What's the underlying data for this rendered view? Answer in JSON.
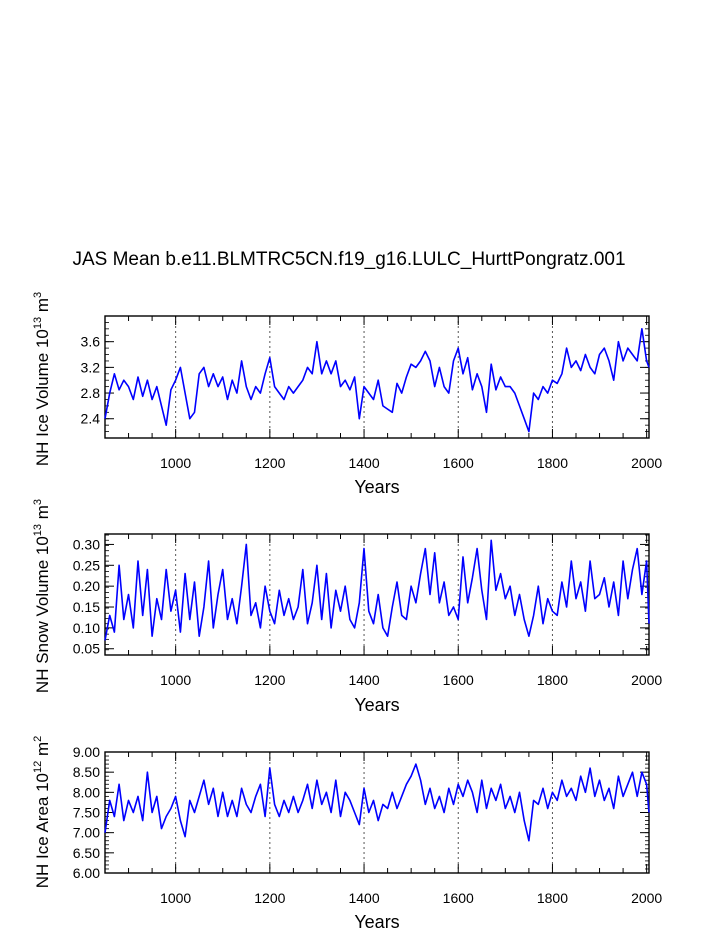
{
  "chart_data": {
    "title": "JAS Mean b.e11.BLMTRC5CN.f19_g16.LULC_HurttPongratz.001",
    "type": "line",
    "line_color": "#0000ff",
    "grid": "vertical dashed at 1000, 1200, 1400, 1600, 1800",
    "panels": [
      {
        "type": "line",
        "ylabel": {
          "main": "NH Ice Volume 10",
          "sup_exp": "13",
          "unit": "m",
          "sup_unit": "3"
        },
        "xlabel": "Years",
        "xlim": [
          850,
          2005
        ],
        "ylim": [
          2.1,
          4.0
        ],
        "xticks": [
          1000,
          1200,
          1400,
          1600,
          1800,
          2000
        ],
        "yticks": [
          2.4,
          2.8,
          3.2,
          3.6
        ],
        "ytick_labels": [
          "2.4",
          "2.8",
          "3.2",
          "3.6"
        ],
        "series": [
          {
            "name": "NH Ice Volume",
            "x": [
              850,
              860,
              870,
              880,
              890,
              900,
              910,
              920,
              930,
              940,
              950,
              960,
              970,
              980,
              990,
              1000,
              1010,
              1020,
              1030,
              1040,
              1050,
              1060,
              1070,
              1080,
              1090,
              1100,
              1110,
              1120,
              1130,
              1140,
              1150,
              1160,
              1170,
              1180,
              1190,
              1200,
              1210,
              1220,
              1230,
              1240,
              1250,
              1260,
              1270,
              1280,
              1290,
              1300,
              1310,
              1320,
              1330,
              1340,
              1350,
              1360,
              1370,
              1380,
              1390,
              1400,
              1410,
              1420,
              1430,
              1440,
              1450,
              1460,
              1470,
              1480,
              1490,
              1500,
              1510,
              1520,
              1530,
              1540,
              1550,
              1560,
              1570,
              1580,
              1590,
              1600,
              1610,
              1620,
              1630,
              1640,
              1650,
              1660,
              1670,
              1680,
              1690,
              1700,
              1710,
              1720,
              1730,
              1740,
              1750,
              1760,
              1770,
              1780,
              1790,
              1800,
              1810,
              1820,
              1830,
              1840,
              1850,
              1860,
              1870,
              1880,
              1890,
              1900,
              1910,
              1920,
              1930,
              1940,
              1950,
              1960,
              1970,
              1980,
              1990,
              2000,
              2005
            ],
            "values": [
              2.4,
              2.8,
              3.1,
              2.85,
              3.0,
              2.9,
              2.7,
              3.05,
              2.75,
              3.0,
              2.7,
              2.9,
              2.6,
              2.3,
              2.85,
              3.0,
              3.2,
              2.8,
              2.4,
              2.5,
              3.1,
              3.2,
              2.9,
              3.1,
              2.9,
              3.05,
              2.7,
              3.0,
              2.8,
              3.3,
              2.9,
              2.7,
              2.9,
              2.8,
              3.1,
              3.35,
              2.9,
              2.8,
              2.7,
              2.9,
              2.8,
              2.9,
              3.0,
              3.2,
              3.1,
              3.6,
              3.1,
              3.3,
              3.1,
              3.3,
              2.9,
              3.0,
              2.85,
              3.05,
              2.4,
              2.9,
              2.8,
              2.7,
              3.0,
              2.6,
              2.55,
              2.5,
              2.95,
              2.8,
              3.05,
              3.25,
              3.2,
              3.3,
              3.45,
              3.3,
              2.9,
              3.2,
              2.9,
              2.8,
              3.3,
              3.5,
              3.1,
              3.35,
              2.85,
              3.1,
              2.9,
              2.5,
              3.25,
              2.85,
              3.05,
              2.9,
              2.9,
              2.8,
              2.6,
              2.4,
              2.2,
              2.8,
              2.7,
              2.9,
              2.8,
              3.0,
              2.95,
              3.1,
              3.5,
              3.2,
              3.3,
              3.15,
              3.4,
              3.2,
              3.1,
              3.4,
              3.5,
              3.3,
              3.0,
              3.6,
              3.3,
              3.5,
              3.4,
              3.3,
              3.8,
              3.3,
              3.2
            ]
          }
        ]
      },
      {
        "type": "line",
        "ylabel": {
          "main": "NH Snow Volume 10",
          "sup_exp": "13",
          "unit": "m",
          "sup_unit": "3"
        },
        "xlabel": "Years",
        "xlim": [
          850,
          2005
        ],
        "ylim": [
          0.035,
          0.325
        ],
        "xticks": [
          1000,
          1200,
          1400,
          1600,
          1800,
          2000
        ],
        "yticks": [
          0.05,
          0.1,
          0.15,
          0.2,
          0.25,
          0.3
        ],
        "ytick_labels": [
          "0.05",
          "0.10",
          "0.15",
          "0.20",
          "0.25",
          "0.30"
        ],
        "series": [
          {
            "name": "NH Snow Volume",
            "x": [
              850,
              860,
              870,
              880,
              890,
              900,
              910,
              920,
              930,
              940,
              950,
              960,
              970,
              980,
              990,
              1000,
              1010,
              1020,
              1030,
              1040,
              1050,
              1060,
              1070,
              1080,
              1090,
              1100,
              1110,
              1120,
              1130,
              1140,
              1150,
              1160,
              1170,
              1180,
              1190,
              1200,
              1210,
              1220,
              1230,
              1240,
              1250,
              1260,
              1270,
              1280,
              1290,
              1300,
              1310,
              1320,
              1330,
              1340,
              1350,
              1360,
              1370,
              1380,
              1390,
              1400,
              1410,
              1420,
              1430,
              1440,
              1450,
              1460,
              1470,
              1480,
              1490,
              1500,
              1510,
              1520,
              1530,
              1540,
              1550,
              1560,
              1570,
              1580,
              1590,
              1600,
              1610,
              1620,
              1630,
              1640,
              1650,
              1660,
              1670,
              1680,
              1690,
              1700,
              1710,
              1720,
              1730,
              1740,
              1750,
              1760,
              1770,
              1780,
              1790,
              1800,
              1810,
              1820,
              1830,
              1840,
              1850,
              1860,
              1870,
              1880,
              1890,
              1900,
              1910,
              1920,
              1930,
              1940,
              1950,
              1960,
              1970,
              1980,
              1990,
              2000,
              2005
            ],
            "values": [
              0.07,
              0.13,
              0.09,
              0.25,
              0.12,
              0.18,
              0.1,
              0.26,
              0.13,
              0.24,
              0.08,
              0.17,
              0.12,
              0.24,
              0.14,
              0.19,
              0.09,
              0.23,
              0.12,
              0.21,
              0.08,
              0.15,
              0.26,
              0.1,
              0.18,
              0.24,
              0.12,
              0.17,
              0.11,
              0.2,
              0.3,
              0.13,
              0.16,
              0.1,
              0.2,
              0.14,
              0.11,
              0.19,
              0.13,
              0.17,
              0.12,
              0.15,
              0.24,
              0.11,
              0.16,
              0.25,
              0.12,
              0.23,
              0.1,
              0.19,
              0.14,
              0.2,
              0.12,
              0.1,
              0.16,
              0.29,
              0.14,
              0.11,
              0.18,
              0.1,
              0.08,
              0.15,
              0.21,
              0.13,
              0.12,
              0.2,
              0.16,
              0.23,
              0.29,
              0.18,
              0.28,
              0.16,
              0.21,
              0.13,
              0.15,
              0.12,
              0.27,
              0.16,
              0.22,
              0.29,
              0.19,
              0.12,
              0.31,
              0.19,
              0.23,
              0.17,
              0.2,
              0.13,
              0.18,
              0.12,
              0.08,
              0.13,
              0.2,
              0.11,
              0.17,
              0.14,
              0.13,
              0.21,
              0.15,
              0.26,
              0.17,
              0.21,
              0.14,
              0.26,
              0.17,
              0.18,
              0.22,
              0.15,
              0.21,
              0.13,
              0.26,
              0.17,
              0.24,
              0.29,
              0.18,
              0.26,
              0.11
            ]
          }
        ]
      },
      {
        "type": "line",
        "ylabel": {
          "main": "NH Ice Area 10",
          "sup_exp": "12",
          "unit": "m",
          "sup_unit": "2"
        },
        "xlabel": "Years",
        "xlim": [
          850,
          2005
        ],
        "ylim": [
          6.0,
          9.0
        ],
        "xticks": [
          1000,
          1200,
          1400,
          1600,
          1800,
          2000
        ],
        "yticks": [
          6.0,
          6.5,
          7.0,
          7.5,
          8.0,
          8.5,
          9.0
        ],
        "ytick_labels": [
          "6.00",
          "6.50",
          "7.00",
          "7.50",
          "8.00",
          "8.50",
          "9.00"
        ],
        "series": [
          {
            "name": "NH Ice Area",
            "x": [
              850,
              860,
              870,
              880,
              890,
              900,
              910,
              920,
              930,
              940,
              950,
              960,
              970,
              980,
              990,
              1000,
              1010,
              1020,
              1030,
              1040,
              1050,
              1060,
              1070,
              1080,
              1090,
              1100,
              1110,
              1120,
              1130,
              1140,
              1150,
              1160,
              1170,
              1180,
              1190,
              1200,
              1210,
              1220,
              1230,
              1240,
              1250,
              1260,
              1270,
              1280,
              1290,
              1300,
              1310,
              1320,
              1330,
              1340,
              1350,
              1360,
              1370,
              1380,
              1390,
              1400,
              1410,
              1420,
              1430,
              1440,
              1450,
              1460,
              1470,
              1480,
              1490,
              1500,
              1510,
              1520,
              1530,
              1540,
              1550,
              1560,
              1570,
              1580,
              1590,
              1600,
              1610,
              1620,
              1630,
              1640,
              1650,
              1660,
              1670,
              1680,
              1690,
              1700,
              1710,
              1720,
              1730,
              1740,
              1750,
              1760,
              1770,
              1780,
              1790,
              1800,
              1810,
              1820,
              1830,
              1840,
              1850,
              1860,
              1870,
              1880,
              1890,
              1900,
              1910,
              1920,
              1930,
              1940,
              1950,
              1960,
              1970,
              1980,
              1990,
              2000,
              2005
            ],
            "values": [
              7.0,
              7.8,
              7.4,
              8.2,
              7.3,
              7.8,
              7.5,
              7.9,
              7.3,
              8.5,
              7.5,
              7.9,
              7.1,
              7.4,
              7.6,
              7.9,
              7.3,
              6.9,
              7.8,
              7.5,
              7.9,
              8.3,
              7.7,
              8.1,
              7.4,
              8.0,
              7.4,
              7.8,
              7.4,
              8.1,
              7.7,
              7.5,
              7.9,
              8.2,
              7.4,
              8.6,
              7.7,
              7.4,
              7.8,
              7.5,
              7.9,
              7.5,
              7.8,
              8.2,
              7.6,
              8.3,
              7.7,
              8.0,
              7.5,
              8.3,
              7.4,
              8.0,
              7.8,
              7.5,
              7.2,
              8.1,
              7.5,
              7.8,
              7.3,
              7.7,
              7.6,
              8.0,
              7.6,
              7.9,
              8.2,
              8.4,
              8.7,
              8.3,
              7.7,
              8.1,
              7.6,
              7.9,
              7.5,
              8.1,
              7.7,
              8.2,
              7.9,
              8.3,
              8.0,
              7.5,
              8.3,
              7.6,
              8.1,
              7.8,
              8.2,
              7.6,
              7.9,
              7.5,
              8.0,
              7.3,
              6.8,
              7.8,
              7.7,
              8.1,
              7.6,
              8.0,
              7.8,
              8.3,
              7.9,
              8.1,
              7.8,
              8.4,
              8.0,
              8.6,
              7.9,
              8.3,
              7.8,
              8.1,
              7.6,
              8.4,
              7.9,
              8.2,
              8.5,
              7.9,
              8.5,
              8.2,
              7.5
            ]
          }
        ]
      }
    ]
  }
}
